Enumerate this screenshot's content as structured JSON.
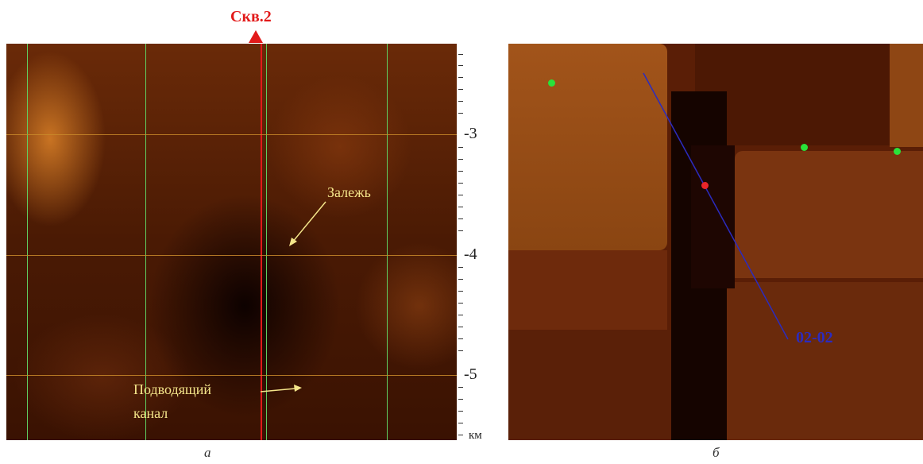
{
  "panel_a": {
    "well_label": "Скв.2",
    "axis": {
      "ticks": [
        "-3",
        "-4",
        "-5"
      ],
      "unit": "км"
    },
    "annotations": {
      "deposit": "Залежь",
      "channel_line1": "Подводящий",
      "channel_line2": "канал"
    },
    "caption": "а"
  },
  "panel_b": {
    "profile_label": "02-02",
    "caption": "б"
  },
  "colors": {
    "well_red": "#e21a1a",
    "grid_green": "#5fcf60",
    "grid_orange": "#c98a2a",
    "profile_blue": "#2b2bbf",
    "marker_green": "#29e23a",
    "annotation_yellow": "#f4e58a"
  }
}
